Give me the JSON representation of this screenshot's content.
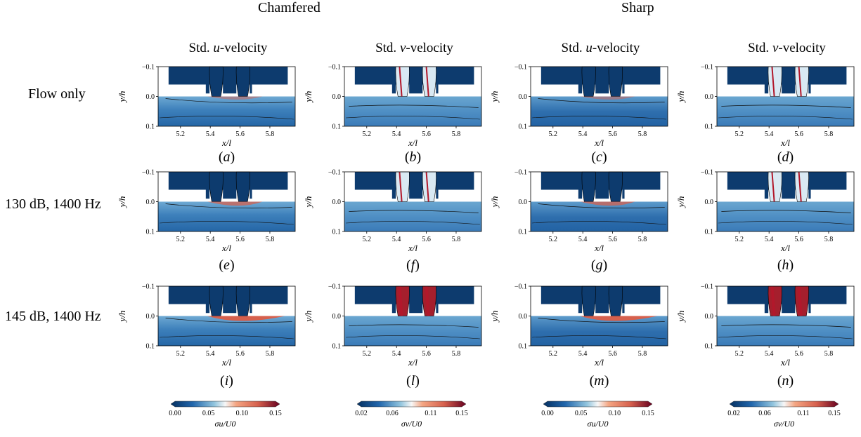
{
  "group_titles": {
    "chamfered": "Chamfered",
    "sharp": "Sharp"
  },
  "column_titles": [
    {
      "prefix": "Std. ",
      "var": "u",
      "suffix": "-velocity"
    },
    {
      "prefix": "Std. ",
      "var": "v",
      "suffix": "-velocity"
    },
    {
      "prefix": "Std. ",
      "var": "u",
      "suffix": "-velocity"
    },
    {
      "prefix": "Std. ",
      "var": "v",
      "suffix": "-velocity"
    }
  ],
  "row_labels": [
    "Flow only",
    "130 dB, 1400 Hz",
    "145 dB, 1400 Hz"
  ],
  "panel_captions": [
    "(a)",
    "(b)",
    "(c)",
    "(d)",
    "(e)",
    "(f)",
    "(g)",
    "(h)",
    "(i)",
    "(l)",
    "(m)",
    "(n)"
  ],
  "colors": {
    "duct_wall": "#0d3b6e",
    "low": "#2166ac",
    "mid": "#f7f7f7",
    "high": "#b2182b"
  },
  "chart_data": {
    "type": "heatmap",
    "layout": "3x4 grid of contour maps",
    "xlabel": "x/l",
    "ylabel": "y/h",
    "xticks": [
      5.2,
      5.4,
      5.6,
      5.8
    ],
    "yticks": [
      -0.1,
      0.0,
      0.1
    ],
    "xlim": [
      5.05,
      5.97
    ],
    "ylim": [
      -0.1,
      0.1
    ],
    "y_inverted": true,
    "colorbars": [
      {
        "label": "σu/U0",
        "ticks": [
          "0.00",
          "0.05",
          "0.10",
          "0.15"
        ],
        "range": [
          0.0,
          0.15
        ]
      },
      {
        "label": "σv/U0",
        "ticks": [
          "0.02",
          "0.06",
          "0.11",
          "0.15"
        ],
        "range": [
          0.02,
          0.15
        ]
      },
      {
        "label": "σu/U0",
        "ticks": [
          "0.00",
          "0.05",
          "0.10",
          "0.15"
        ],
        "range": [
          0.0,
          0.15
        ]
      },
      {
        "label": "σv/U0",
        "ticks": [
          "0.02",
          "0.06",
          "0.11",
          "0.15"
        ],
        "range": [
          0.02,
          0.15
        ]
      }
    ],
    "columns": [
      {
        "group": "Chamfered",
        "variable": "u"
      },
      {
        "group": "Chamfered",
        "variable": "v"
      },
      {
        "group": "Sharp",
        "variable": "u"
      },
      {
        "group": "Sharp",
        "variable": "v"
      }
    ],
    "rows": [
      "Flow only",
      "130 dB, 1400 Hz",
      "145 dB, 1400 Hz"
    ],
    "orifice_centres_x": [
      5.44,
      5.62
    ]
  }
}
